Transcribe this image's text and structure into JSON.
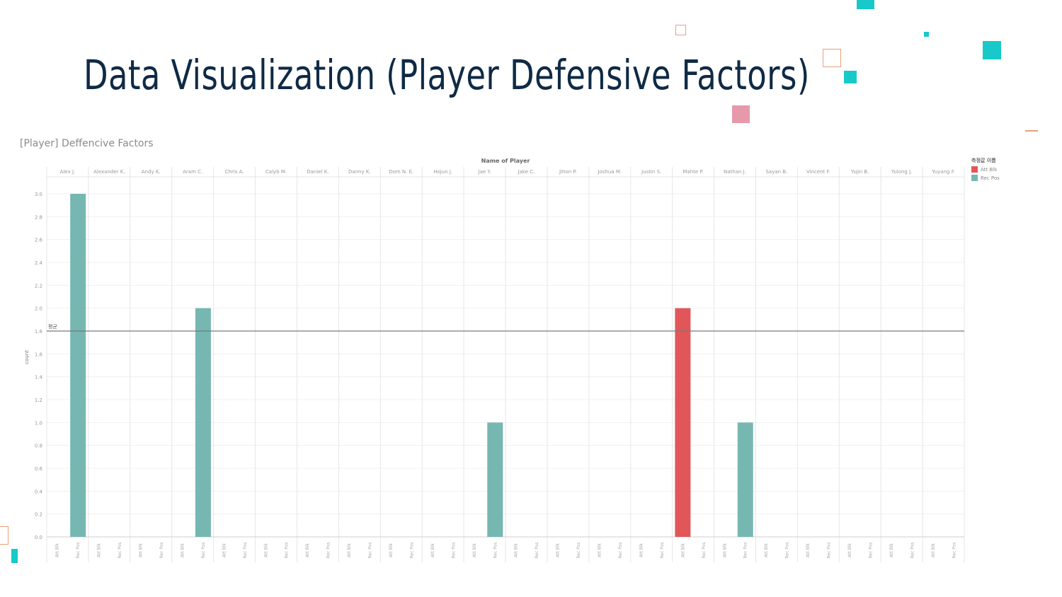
{
  "slide": {
    "title": "Data Visualization (Player Defensive Factors)"
  },
  "chart_data": {
    "type": "bar",
    "title": "[Player] Deffencive Factors",
    "xlabel": "Name of Player",
    "ylabel": "count",
    "ylim": [
      0,
      3.0
    ],
    "yticks": [
      "0.0",
      "0.2",
      "0.4",
      "0.6",
      "0.8",
      "1.0",
      "1.2",
      "1.4",
      "1.6",
      "1.8",
      "2.0",
      "2.2",
      "2.4",
      "2.6",
      "2.8",
      "3.0"
    ],
    "reference_line": {
      "label": "평균",
      "value": 1.8
    },
    "players": [
      "Alex J.",
      "Alexander K.",
      "Andy K.",
      "Aram C.",
      "Chris A.",
      "Calyb M.",
      "Daniel K.",
      "Danny K.",
      "Dom N. E.",
      "Hojun J.",
      "Jae Y.",
      "Jake C.",
      "Jihon P.",
      "Joshua M.",
      "Justin S.",
      "Mahte P.",
      "Nathan J.",
      "Sayan B.",
      "Vincent F.",
      "Yujin B.",
      "Yulong J.",
      "Yuyang F."
    ],
    "subcategories": [
      "Att Blk",
      "Rec Pos"
    ],
    "series": [
      {
        "name": "Att Blk",
        "color": "#e15759",
        "values": [
          0,
          0,
          0,
          0,
          0,
          0,
          0,
          0,
          0,
          0,
          0,
          0,
          0,
          0,
          0,
          2,
          0,
          0,
          0,
          0,
          0,
          0
        ]
      },
      {
        "name": "Rec Pos",
        "color": "#76b7b2",
        "values": [
          3,
          0,
          0,
          2,
          0,
          0,
          0,
          0,
          0,
          0,
          1,
          0,
          0,
          0,
          0,
          0,
          1,
          0,
          0,
          0,
          0,
          0
        ]
      }
    ],
    "legend": {
      "title": "측정값 이름",
      "position": "top-right"
    },
    "grid": true
  },
  "colors": {
    "title": "#0f2a45",
    "accent_teal": "#19c9c9",
    "accent_pink": "#e799ac",
    "accent_orange": "#e8a07a"
  }
}
